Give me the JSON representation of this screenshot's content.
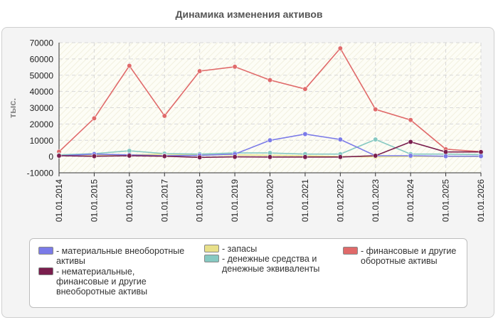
{
  "chart_data": {
    "type": "line",
    "title": "Динамика изменения активов",
    "ylabel": "тыс.",
    "xlabel": "",
    "x": [
      "01.01.2014",
      "01.01.2015",
      "01.01.2016",
      "01.01.2017",
      "01.01.2018",
      "01.01.2019",
      "01.01.2020",
      "01.01.2021",
      "01.01.2022",
      "01.01.2023",
      "01.01.2024",
      "01.01.2025",
      "01.01.2026"
    ],
    "ylim": [
      -10000,
      70000
    ],
    "yticks": [
      -10000,
      0,
      10000,
      20000,
      30000,
      40000,
      50000,
      60000,
      70000
    ],
    "grid": true,
    "legend_position": "bottom",
    "series": [
      {
        "name": "- материальные внеоборотные активы",
        "color": "#7b7be8",
        "values": [
          500,
          1500,
          1000,
          500,
          700,
          1500,
          10000,
          13800,
          10500,
          500,
          500,
          200,
          200
        ]
      },
      {
        "name": "- нематериальные, финансовые и другие внеоборотные активы",
        "color": "#7a1e4e",
        "values": [
          500,
          200,
          500,
          200,
          -500,
          -200,
          -300,
          -300,
          -300,
          500,
          9000,
          2800,
          2800
        ]
      },
      {
        "name": "- запасы",
        "color": "#e8e08a",
        "values": [
          800,
          1000,
          1000,
          1500,
          1000,
          1000,
          800,
          500,
          0,
          -200,
          0,
          0,
          0
        ]
      },
      {
        "name": "- денежные средства и денежные эквиваленты",
        "color": "#86c9c2",
        "values": [
          1000,
          1800,
          3500,
          1800,
          1500,
          2200,
          2200,
          1500,
          1500,
          10500,
          1500,
          1500,
          1200
        ]
      },
      {
        "name": "- финансовые и другие оборотные активы",
        "color": "#e06a6a",
        "values": [
          3000,
          23500,
          55800,
          25000,
          52500,
          55200,
          47000,
          41500,
          66500,
          29000,
          22500,
          4500,
          3000
        ]
      }
    ]
  }
}
